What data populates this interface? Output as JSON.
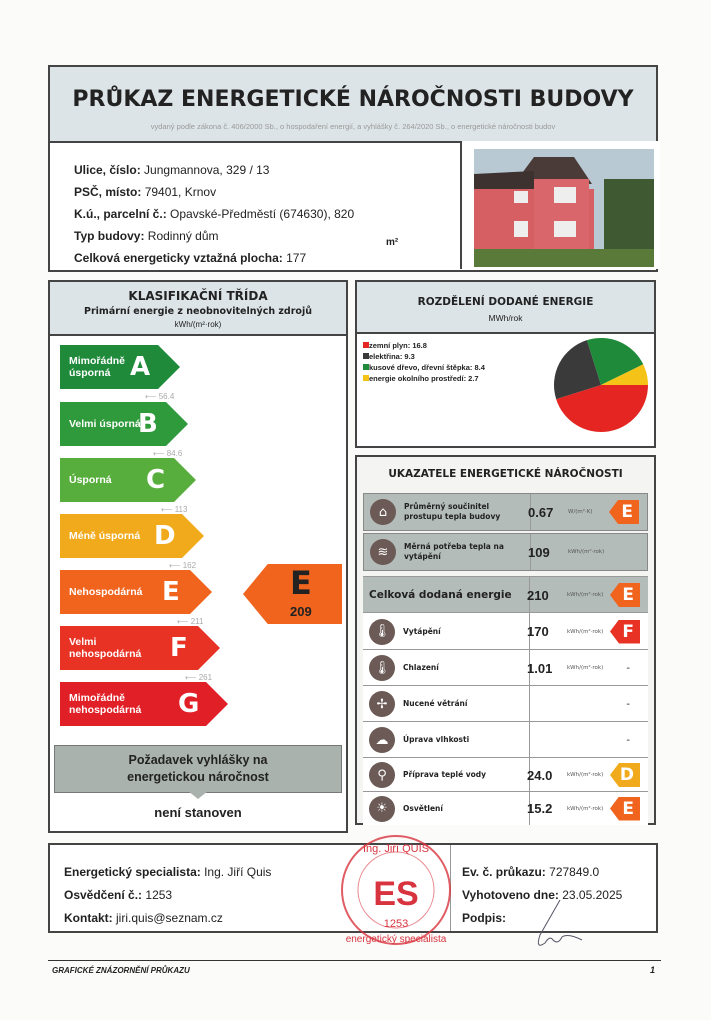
{
  "header": {
    "title": "PRŮKAZ ENERGETICKÉ NÁROČNOSTI BUDOVY",
    "subtitle": "vydaný podle zákona č. 406/2000 Sb., o hospodaření energií, a vyhlášky č. 264/2020 Sb., o energetické náročnosti budov"
  },
  "building": {
    "fields": [
      {
        "label": "Ulice, číslo:",
        "value": "Jungmannova, 329 / 13"
      },
      {
        "label": "PSČ, místo:",
        "value": "79401, Krnov"
      },
      {
        "label": "K.ú., parcelní č.:",
        "value": "Opavské-Předměstí (674630), 820"
      },
      {
        "label": "Typ budovy:",
        "value": "Rodinný dům"
      },
      {
        "label": "Celková energeticky vztažná plocha:",
        "value": "177"
      }
    ],
    "area_unit": "m²"
  },
  "classification": {
    "title": "KLASIFIKAČNÍ TŘÍDA",
    "subtitle": "Primární energie z neobnovitelných zdrojů",
    "unit": "kWh/(m²·rok)",
    "classes": [
      {
        "letter": "A",
        "label": "Mimořádně úsporná",
        "color": "#1e8a3a"
      },
      {
        "letter": "B",
        "label": "Velmi úsporná",
        "color": "#2f9a3c"
      },
      {
        "letter": "C",
        "label": "Úsporná",
        "color": "#58ae3c"
      },
      {
        "letter": "D",
        "label": "Méně úsporná",
        "color": "#f0aa1c"
      },
      {
        "letter": "E",
        "label": "Nehospodárná",
        "color": "#f0641e"
      },
      {
        "letter": "F",
        "label": "Velmi nehospodárná",
        "color": "#e73224"
      },
      {
        "letter": "G",
        "label": "Mimořádně nehospodárná",
        "color": "#e01f26"
      }
    ],
    "thresholds": [
      "56.4",
      "84.6",
      "113",
      "162",
      "211",
      "261"
    ],
    "current": {
      "letter": "E",
      "value": "209",
      "color": "#f0641e"
    }
  },
  "requirement": {
    "title": "Požadavek vyhlášky na energetickou náročnost",
    "value": "není stanoven"
  },
  "distribution": {
    "title": "ROZDĚLENÍ DODANÉ ENERGIE",
    "unit": "MWh/rok",
    "chart_data": {
      "type": "pie",
      "values": [
        16.8,
        9.3,
        8.4,
        2.7
      ],
      "labels": [
        "zemní plyn",
        "elektřina",
        "kusové dřevo, dřevní štěpka",
        "energie okolního prostředí"
      ],
      "colors": [
        "#e52521",
        "#3a3a3a",
        "#1f8a3a",
        "#f5c218"
      ]
    },
    "legend": [
      "zemní plyn: 16.8",
      "elektřina: 9.3",
      "kusové dřevo, dřevní štěpka: 8.4",
      "energie okolního prostředí: 2.7"
    ]
  },
  "indicators": {
    "title": "UKAZATELE ENERGETICKÉ NÁROČNOSTI",
    "rows": [
      {
        "icon": "house-icon",
        "glyph": "⌂",
        "label": "Průměrný součinitel prostupu tepla budovy",
        "value": "0.67",
        "unit": "W/(m²·K)",
        "class": "E",
        "color": "#f0641e"
      },
      {
        "icon": "heat-demand-icon",
        "glyph": "≋",
        "label": "Měrná potřeba tepla na vytápění",
        "value": "109",
        "unit": "kWh/(m²·rok)"
      },
      {
        "label": "Celková dodaná energie",
        "value": "210",
        "unit": "kWh/(m²·rok)",
        "class": "E",
        "color": "#f0641e"
      },
      {
        "icon": "heating-thermometer-icon",
        "glyph": "🌡",
        "label": "Vytápění",
        "value": "170",
        "unit": "kWh/(m²·rok)",
        "class": "F",
        "color": "#e73224"
      },
      {
        "icon": "cooling-thermometer-icon",
        "glyph": "🌡",
        "label": "Chlazení",
        "value": "1.01",
        "unit": "kWh/(m²·rok)",
        "dash": "-"
      },
      {
        "icon": "fan-icon",
        "glyph": "✢",
        "label": "Nucené větrání",
        "dash": "-"
      },
      {
        "icon": "humidity-icon",
        "glyph": "☁",
        "label": "Úprava vlhkosti",
        "dash": "-"
      },
      {
        "icon": "water-tap-icon",
        "glyph": "⚲",
        "label": "Příprava teplé vody",
        "value": "24.0",
        "unit": "kWh/(m²·rok)",
        "class": "D",
        "color": "#f0aa1c"
      },
      {
        "icon": "lightbulb-icon",
        "glyph": "☀",
        "label": "Osvětlení",
        "value": "15.2",
        "unit": "kWh/(m²·rok)",
        "class": "E",
        "color": "#f0641e"
      }
    ]
  },
  "specialist": {
    "name_label": "Energetický specialista:",
    "name": "Ing. Jiří Quis",
    "cert_label": "Osvědčení č.:",
    "cert": "1253",
    "contact_label": "Kontakt:",
    "contact": "jiri.quis@seznam.cz",
    "reg_label": "Ev. č. průkazu:",
    "reg": "727849.0",
    "date_label": "Vyhotoveno dne:",
    "date": "23.05.2025",
    "sign_label": "Podpis:",
    "stamp": {
      "top": "Ing. Jiří QUIS",
      "logo": "ES",
      "number": "1253",
      "bottom": "energetický specialista"
    }
  },
  "footer": {
    "left": "GRAFICKÉ ZNÁZORNĚNÍ PRŮKAZU",
    "page": "1"
  }
}
